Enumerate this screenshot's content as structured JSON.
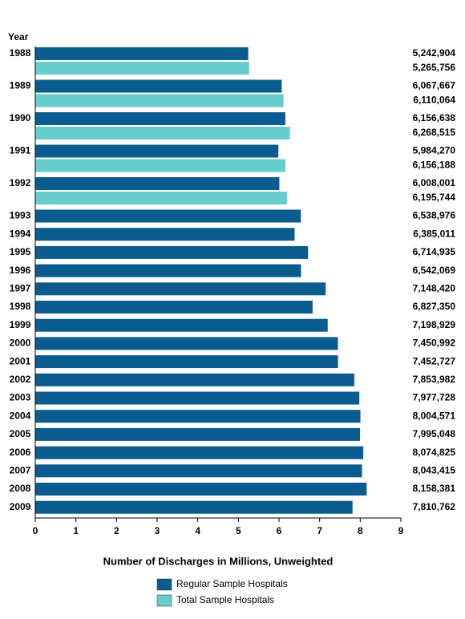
{
  "chart_data": {
    "type": "bar",
    "orientation": "horizontal",
    "x_label": "Number of Discharges in Millions, Unweighted",
    "category_label": "Year",
    "categories": [
      "1988",
      "1989",
      "1990",
      "1991",
      "1992",
      "1993",
      "1994",
      "1995",
      "1996",
      "1997",
      "1998",
      "1999",
      "2000",
      "2001",
      "2002",
      "2003",
      "2004",
      "2005",
      "2006",
      "2007",
      "2008",
      "2009"
    ],
    "series": [
      {
        "name": "Regular Sample Hospitals",
        "color": "#0b5c8e",
        "values": [
          5.242904,
          6.067667,
          6.156638,
          5.98427,
          6.008001,
          6.538976,
          6.385011,
          6.714935,
          6.542069,
          7.14842,
          6.82735,
          7.198929,
          7.450992,
          7.452727,
          7.853982,
          7.977728,
          8.004571,
          7.995048,
          8.074825,
          8.043415,
          8.158381,
          7.810762
        ],
        "value_labels": [
          "5,242,904",
          "6,067,667",
          "6,156,638",
          "5,984,270",
          "6,008,001",
          "6,538,976",
          "6,385,011",
          "6,714,935",
          "6,542,069",
          "7,148,420",
          "6,827,350",
          "7,198,929",
          "7,450,992",
          "7,452,727",
          "7,853,982",
          "7,977,728",
          "8,004,571",
          "7,995,048",
          "8,074,825",
          "8,043,415",
          "8,158,381",
          "7,810,762"
        ]
      },
      {
        "name": "Total Sample Hospitals",
        "color": "#66cccc",
        "values": [
          5.265756,
          6.110064,
          6.268515,
          6.156188,
          6.195744,
          null,
          null,
          null,
          null,
          null,
          null,
          null,
          null,
          null,
          null,
          null,
          null,
          null,
          null,
          null,
          null,
          null
        ],
        "value_labels": [
          "5,265,756",
          "6,110,064",
          "6,268,515",
          "6,156,188",
          "6,195,744",
          null,
          null,
          null,
          null,
          null,
          null,
          null,
          null,
          null,
          null,
          null,
          null,
          null,
          null,
          null,
          null,
          null
        ]
      }
    ],
    "xlim": [
      0,
      9
    ],
    "xticks": [
      0,
      1,
      2,
      3,
      4,
      5,
      6,
      7,
      8,
      9
    ]
  }
}
